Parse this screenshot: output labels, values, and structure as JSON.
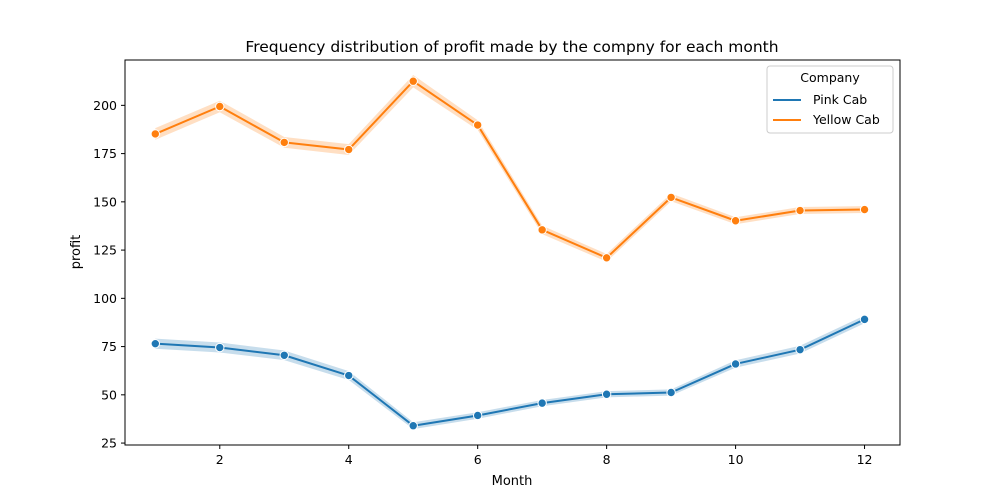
{
  "chart_data": {
    "type": "line",
    "title": "Frequency distribution of profit made by the compny for each month",
    "xlabel": "Month",
    "ylabel": "profit",
    "xlim": [
      0.53,
      12.55
    ],
    "ylim": [
      24.0,
      223.5
    ],
    "xticks": [
      2,
      4,
      6,
      8,
      10,
      12
    ],
    "yticks": [
      25,
      50,
      75,
      100,
      125,
      150,
      175,
      200
    ],
    "legend": {
      "title": "Company",
      "position": "top-right"
    },
    "grid": false,
    "x": [
      1,
      2,
      3,
      4,
      5,
      6,
      7,
      8,
      9,
      10,
      11,
      12
    ],
    "series": [
      {
        "name": "Pink Cab",
        "color": "#1f77b4",
        "values": [
          76.5,
          74.5,
          70.5,
          60.0,
          34.0,
          39.3,
          45.7,
          50.3,
          51.2,
          66.0,
          73.4,
          89.1
        ],
        "ci_half_width": [
          2.6,
          2.6,
          2.5,
          2.3,
          1.8,
          1.7,
          1.6,
          1.6,
          1.6,
          1.9,
          2.0,
          2.0
        ]
      },
      {
        "name": "Yellow Cab",
        "color": "#ff7f0e",
        "values": [
          185.2,
          199.4,
          180.8,
          177.1,
          212.5,
          189.8,
          135.5,
          121.0,
          152.3,
          140.2,
          145.5,
          146.0
        ],
        "ci_half_width": [
          3.0,
          3.0,
          2.8,
          2.8,
          3.2,
          2.5,
          2.2,
          2.0,
          2.0,
          1.8,
          1.8,
          1.8
        ]
      }
    ]
  }
}
